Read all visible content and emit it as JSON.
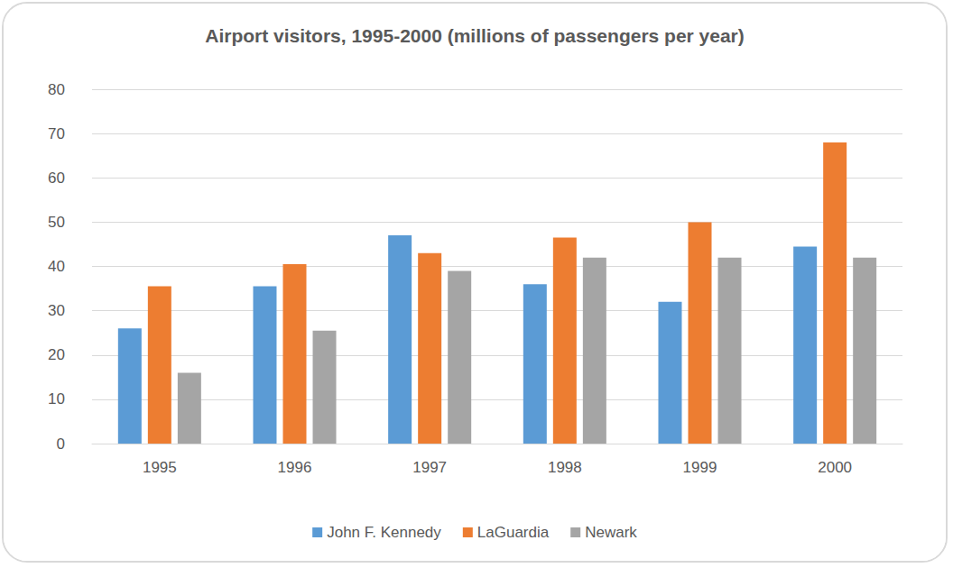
{
  "chart_data": {
    "type": "bar",
    "title": "Airport visitors, 1995-2000 (millions of passengers per year)",
    "categories": [
      "1995",
      "1996",
      "1997",
      "1998",
      "1999",
      "2000"
    ],
    "series": [
      {
        "name": "John F. Kennedy",
        "color": "#5b9bd5",
        "values": [
          26,
          35.5,
          47,
          36,
          32,
          44.5
        ]
      },
      {
        "name": "LaGuardia",
        "color": "#ed7d31",
        "values": [
          35.5,
          40.5,
          43,
          46.5,
          50,
          68
        ]
      },
      {
        "name": "Newark",
        "color": "#a5a5a5",
        "values": [
          16,
          25.5,
          39,
          42,
          42,
          42
        ]
      }
    ],
    "ylim": [
      0,
      80
    ],
    "yticks": [
      0,
      10,
      20,
      30,
      40,
      50,
      60,
      70,
      80
    ],
    "grid": true,
    "legend": "bottom"
  }
}
